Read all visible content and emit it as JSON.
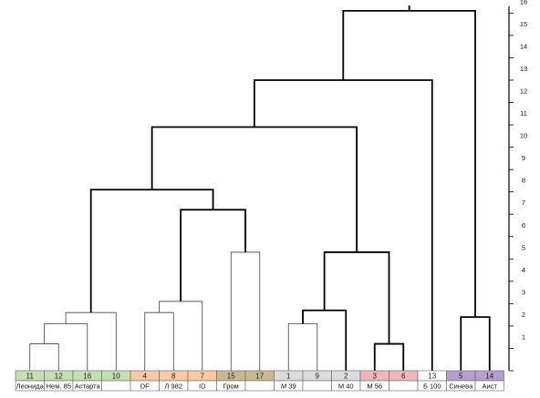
{
  "chart_data": {
    "type": "dendrogram",
    "title": "",
    "xlabel": "",
    "ylabel": "",
    "ylim": [
      0,
      16.3
    ],
    "y_ticks": [
      1,
      2,
      3,
      4,
      5,
      6,
      7,
      8,
      9,
      10,
      11,
      12,
      13,
      14,
      15,
      16
    ],
    "leaves": [
      {
        "num": "11",
        "name": "Леонида",
        "color": "#c6dfb0",
        "italic": false
      },
      {
        "num": "12",
        "name": "Нем. 85",
        "color": "#c6dfb0",
        "italic": false
      },
      {
        "num": "16",
        "name": "Астарта",
        "color": "#c6dfb0",
        "italic": false
      },
      {
        "num": "10",
        "name": "",
        "color": "#c6dfb0",
        "italic": false
      },
      {
        "num": "4",
        "name": "DF",
        "color": "#f8c9a4",
        "italic": false
      },
      {
        "num": "8",
        "name": "Л 982",
        "color": "#f8c9a4",
        "italic": false
      },
      {
        "num": "7",
        "name": "ID",
        "color": "#f8c9a4",
        "italic": false
      },
      {
        "num": "15",
        "name": "Гром",
        "color": "#c9b98e",
        "italic": false
      },
      {
        "num": "17",
        "name": "",
        "color": "#c9b98e",
        "italic": false
      },
      {
        "num": "1",
        "name": "М 39",
        "color": "#dcdcdc",
        "italic": true
      },
      {
        "num": "9",
        "name": "",
        "color": "#dcdcdc",
        "italic": false
      },
      {
        "num": "2",
        "name": "М 40",
        "color": "#dcdcdc",
        "italic": false
      },
      {
        "num": "3",
        "name": "М 56",
        "color": "#f0b6bc",
        "italic": false
      },
      {
        "num": "6",
        "name": "",
        "color": "#f0b6bc",
        "italic": false
      },
      {
        "num": "13",
        "name": "Б 100",
        "color": "#ffffff",
        "italic": false
      },
      {
        "num": "5",
        "name": "Синева",
        "color": "#b3a0d0",
        "italic": false
      },
      {
        "num": "14",
        "name": "Аист",
        "color": "#b3a0d0",
        "italic": false
      }
    ],
    "merges": [
      {
        "a": 0,
        "b": 1,
        "height": 1.2,
        "weight": "thin"
      },
      {
        "a": 17,
        "b": 2,
        "height": 2.1,
        "weight": "thin"
      },
      {
        "a": 18,
        "b": 3,
        "height": 2.6,
        "weight": "thin"
      },
      {
        "a": 4,
        "b": 5,
        "height": 2.6,
        "weight": "thin"
      },
      {
        "a": 20,
        "b": 6,
        "height": 3.1,
        "weight": "thin"
      },
      {
        "a": 7,
        "b": 8,
        "height": 5.3,
        "weight": "thin"
      },
      {
        "a": 21,
        "b": 22,
        "height": 7.2,
        "weight": "bold"
      },
      {
        "a": 19,
        "b": 23,
        "height": 8.1,
        "weight": "bold"
      },
      {
        "a": 9,
        "b": 10,
        "height": 2.1,
        "weight": "thin"
      },
      {
        "a": 25,
        "b": 11,
        "height": 2.7,
        "weight": "bold"
      },
      {
        "a": 12,
        "b": 13,
        "height": 1.2,
        "weight": "bold"
      },
      {
        "a": 26,
        "b": 27,
        "height": 5.3,
        "weight": "bold"
      },
      {
        "a": 24,
        "b": 28,
        "height": 10.9,
        "weight": "bold"
      },
      {
        "a": 29,
        "b": 14,
        "height": 13.0,
        "weight": "bold"
      },
      {
        "a": 15,
        "b": 16,
        "height": 2.4,
        "weight": "bold"
      },
      {
        "a": 30,
        "b": 31,
        "height": 16.1,
        "weight": "bold"
      }
    ],
    "grid": false,
    "legend": "none"
  }
}
